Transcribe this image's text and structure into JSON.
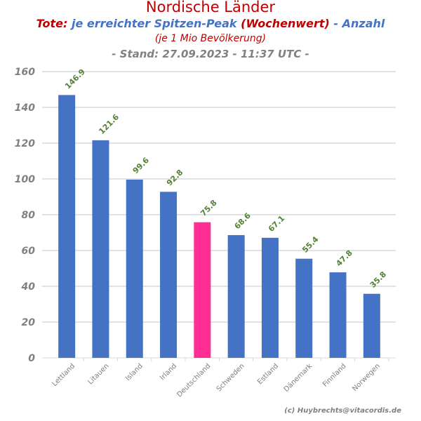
{
  "chart_data": {
    "type": "bar",
    "title": "Nordische Länder",
    "subtitle_parts": [
      "Tote:",
      "je erreichter Spitzen-Peak",
      "(Wochenwert)",
      "- Anzahl"
    ],
    "subtitle2": "(je 1 Mio Bevölkerung)",
    "subtitle3": "- Stand: 27.09.2023 - 11:37 UTC -",
    "categories": [
      "Lettland",
      "Litauen",
      "Island",
      "Irland",
      "Deutschland",
      "Schweden",
      "Estland",
      "Dänemark",
      "Finnland",
      "Norwegen"
    ],
    "values": [
      146.9,
      121.6,
      99.6,
      92.8,
      75.8,
      68.6,
      67.1,
      55.4,
      47.8,
      35.8
    ],
    "data_labels": [
      "146.9",
      "121.6",
      "99.6",
      "92.8",
      "75.8",
      "68.6",
      "67.1",
      "55.4",
      "47.8",
      "35.8"
    ],
    "highlight_index": 4,
    "ylim": [
      0,
      160
    ],
    "yticks": [
      "0",
      "20",
      "40",
      "60",
      "80",
      "100",
      "120",
      "140",
      "160"
    ],
    "grid": true,
    "xlabel": "",
    "ylabel": "",
    "colors": {
      "bar": "#4472c4",
      "highlight": "#ff2d94",
      "label": "#548235",
      "grid": "#d9d9d9",
      "axis_text": "#808080"
    }
  },
  "credit": "(c) Huybrechts@vitacordis.de"
}
